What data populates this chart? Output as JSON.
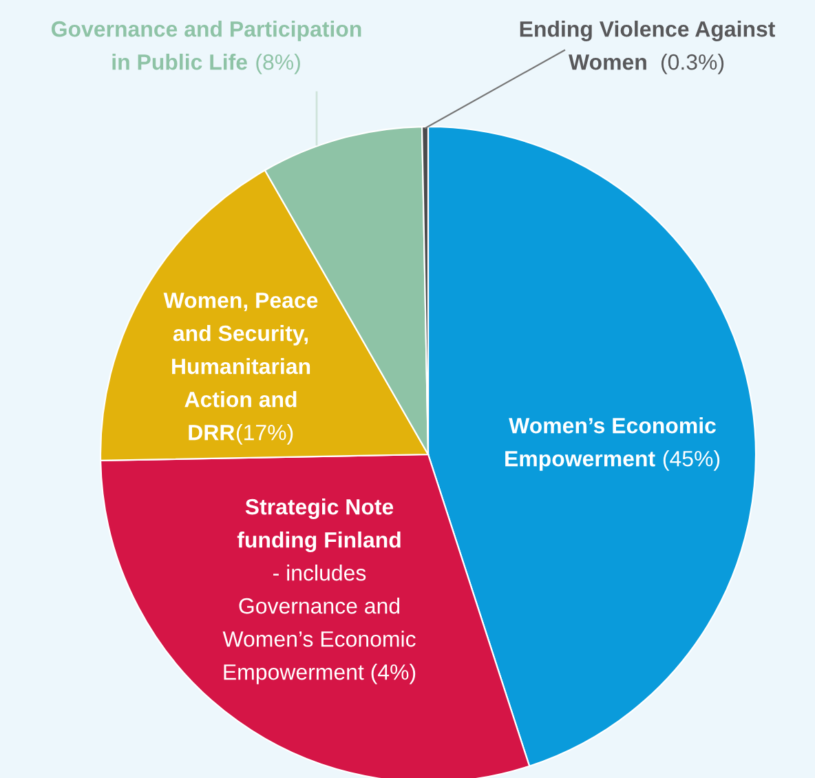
{
  "chart_data": {
    "type": "pie",
    "categories": [
      "Women’s Economic\nEmpowerment",
      "Strategic Note\nfunding Finland",
      "Women, Peace\nand Security,\nHumanitarian\nAction and\nDRR",
      "Governance and Participation\nin Public Life",
      "Ending Violence Against\nWomen"
    ],
    "values": [
      45,
      29.7,
      17,
      8,
      0.3
    ],
    "value_labels": [
      " (45%)",
      null,
      "(17%)",
      " (8%)",
      "  (0.3%)"
    ],
    "annotations": [
      "- includes\nGovernance and\nWomen’s Economic\nEmpowerment (4%)"
    ],
    "colors": [
      "#0a9bdb",
      "#d51546",
      "#e2b20c",
      "#8ec3a6",
      "#4a4a4c"
    ],
    "legend": false
  }
}
